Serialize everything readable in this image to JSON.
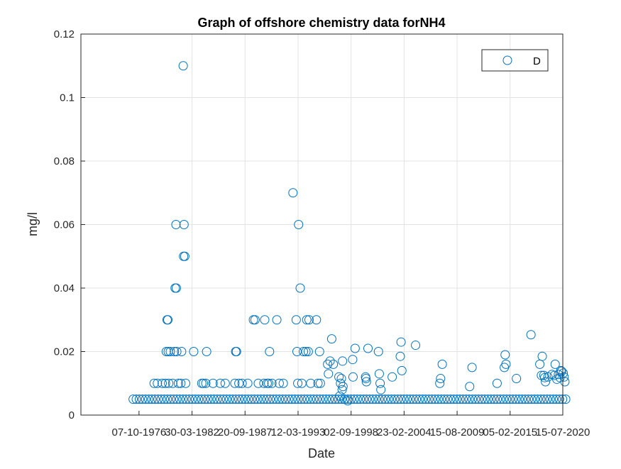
{
  "chart_data": {
    "type": "scatter",
    "title": "Graph of offshore chemistry data forNH4",
    "xlabel": "Date",
    "ylabel": "mg/l",
    "xlim": [
      "1970-10-07",
      "2020-07-15"
    ],
    "ylim": [
      0,
      0.12
    ],
    "grid": true,
    "legend_position": "top-right",
    "x_tick_labels": [
      "07-10-1976",
      "30-03-1982",
      "20-09-1987",
      "12-03-1993",
      "02-09-1998",
      "23-02-2004",
      "15-08-2009",
      "05-02-2015",
      "15-07-2020"
    ],
    "x_tick_dates": [
      "1976-10-07",
      "1982-03-30",
      "1987-09-20",
      "1993-03-12",
      "1998-09-02",
      "2004-02-23",
      "2009-08-15",
      "2015-02-05",
      "2020-07-15"
    ],
    "y_tick_labels": [
      "0",
      "0.02",
      "0.04",
      "0.06",
      "0.08",
      "0.1",
      "0.12"
    ],
    "y_ticks": [
      0,
      0.02,
      0.04,
      0.06,
      0.08,
      0.1,
      0.12
    ],
    "series": [
      {
        "name": "D",
        "color": "#0072BD",
        "marker": "circle-open",
        "points": [
          [
            "1981-05-01",
            0.11
          ],
          [
            "1981-06-01",
            0.06
          ],
          [
            "1980-08-01",
            0.06
          ],
          [
            "1981-07-01",
            0.05
          ],
          [
            "1981-05-15",
            0.05
          ],
          [
            "1980-07-01",
            0.04
          ],
          [
            "1980-08-15",
            0.04
          ],
          [
            "1979-09-01",
            0.03
          ],
          [
            "1979-10-01",
            0.03
          ],
          [
            "1979-08-01",
            0.02
          ],
          [
            "1979-10-15",
            0.02
          ],
          [
            "1980-01-01",
            0.02
          ],
          [
            "1980-06-01",
            0.02
          ],
          [
            "1980-09-01",
            0.02
          ],
          [
            "1981-03-01",
            0.02
          ],
          [
            "1982-06-01",
            0.02
          ],
          [
            "1983-10-01",
            0.02
          ],
          [
            "1986-10-01",
            0.02
          ],
          [
            "1986-11-01",
            0.02
          ],
          [
            "1978-05-01",
            0.01
          ],
          [
            "1978-09-01",
            0.01
          ],
          [
            "1979-03-01",
            0.01
          ],
          [
            "1979-07-01",
            0.01
          ],
          [
            "1979-11-01",
            0.01
          ],
          [
            "1980-04-01",
            0.01
          ],
          [
            "1980-11-01",
            0.01
          ],
          [
            "1981-02-01",
            0.01
          ],
          [
            "1981-08-01",
            0.01
          ],
          [
            "1983-04-01",
            0.01
          ],
          [
            "1983-06-01",
            0.01
          ],
          [
            "1983-09-01",
            0.01
          ],
          [
            "1984-06-01",
            0.01
          ],
          [
            "1985-03-01",
            0.01
          ],
          [
            "1985-09-01",
            0.01
          ],
          [
            "1986-09-01",
            0.01
          ],
          [
            "1987-02-01",
            0.01
          ],
          [
            "1987-06-01",
            0.01
          ],
          [
            "1988-01-01",
            0.01
          ],
          [
            "1988-08-01",
            0.03
          ],
          [
            "1988-10-01",
            0.03
          ],
          [
            "1989-10-01",
            0.03
          ],
          [
            "1991-01-01",
            0.03
          ],
          [
            "1992-09-01",
            0.07
          ],
          [
            "1993-04-01",
            0.06
          ],
          [
            "1993-06-01",
            0.04
          ],
          [
            "1993-01-01",
            0.03
          ],
          [
            "1994-02-01",
            0.03
          ],
          [
            "1994-05-01",
            0.03
          ],
          [
            "1995-02-01",
            0.03
          ],
          [
            "1990-04-01",
            0.02
          ],
          [
            "1993-02-01",
            0.02
          ],
          [
            "1993-10-01",
            0.02
          ],
          [
            "1994-01-01",
            0.02
          ],
          [
            "1994-04-01",
            0.02
          ],
          [
            "1995-06-01",
            0.02
          ],
          [
            "1989-02-01",
            0.01
          ],
          [
            "1989-09-01",
            0.01
          ],
          [
            "1990-01-01",
            0.01
          ],
          [
            "1990-03-01",
            0.01
          ],
          [
            "1990-07-01",
            0.01
          ],
          [
            "1991-04-01",
            0.01
          ],
          [
            "1991-09-01",
            0.01
          ],
          [
            "1993-03-01",
            0.01
          ],
          [
            "1993-08-01",
            0.01
          ],
          [
            "1994-07-01",
            0.01
          ],
          [
            "1995-04-01",
            0.01
          ],
          [
            "1995-07-01",
            0.01
          ],
          [
            "1996-09-01",
            0.024
          ],
          [
            "1996-07-01",
            0.017
          ],
          [
            "1996-04-01",
            0.016
          ],
          [
            "1996-11-01",
            0.016
          ],
          [
            "1996-05-01",
            0.013
          ],
          [
            "1997-06-01",
            0.012
          ],
          [
            "1997-09-01",
            0.0115
          ],
          [
            "1997-08-01",
            0.01
          ],
          [
            "1997-11-01",
            0.009
          ],
          [
            "1997-10-01",
            0.008
          ],
          [
            "1997-07-01",
            0.006
          ],
          [
            "1998-01-01",
            0.005
          ],
          [
            "1998-05-01",
            0.0045
          ],
          [
            "1997-10-15",
            0.017
          ],
          [
            "1999-02-01",
            0.021
          ],
          [
            "1998-11-01",
            0.0175
          ],
          [
            "1998-11-15",
            0.012
          ],
          [
            "2000-06-01",
            0.021
          ],
          [
            "2000-03-01",
            0.012
          ],
          [
            "2000-03-15",
            0.0115
          ],
          [
            "2000-04-01",
            0.0105
          ],
          [
            "2001-07-01",
            0.02
          ],
          [
            "2001-08-01",
            0.013
          ],
          [
            "2001-09-01",
            0.01
          ],
          [
            "2001-10-01",
            0.008
          ],
          [
            "2002-12-01",
            0.012
          ],
          [
            "2003-11-01",
            0.023
          ],
          [
            "2003-10-01",
            0.0185
          ],
          [
            "2003-12-01",
            0.014
          ],
          [
            "2005-05-01",
            0.022
          ],
          [
            "2008-02-01",
            0.016
          ],
          [
            "2007-12-01",
            0.0115
          ],
          [
            "2007-11-01",
            0.01
          ],
          [
            "2011-03-01",
            0.015
          ],
          [
            "2010-12-01",
            0.009
          ],
          [
            "2014-08-01",
            0.019
          ],
          [
            "2014-09-01",
            0.016
          ],
          [
            "2014-07-01",
            0.015
          ],
          [
            "2013-10-01",
            0.01
          ],
          [
            "2015-10-01",
            0.0115
          ],
          [
            "2017-04-01",
            0.0253
          ],
          [
            "2018-06-01",
            0.0185
          ],
          [
            "2018-03-01",
            0.016
          ],
          [
            "2018-05-01",
            0.0125
          ],
          [
            "2018-08-01",
            0.0125
          ],
          [
            "2018-10-01",
            0.0105
          ],
          [
            "2019-01-01",
            0.012
          ],
          [
            "2019-06-01",
            0.0128
          ],
          [
            "2019-10-01",
            0.016
          ],
          [
            "2019-12-01",
            0.0113
          ],
          [
            "2020-02-01",
            0.0128
          ],
          [
            "2020-04-01",
            0.0118
          ],
          [
            "2020-06-01",
            0.0138
          ],
          [
            "2020-08-01",
            0.0132
          ],
          [
            "2020-09-01",
            0.012
          ],
          [
            "2020-10-01",
            0.0105
          ],
          [
            "2018-09-01",
            0.0118
          ],
          [
            "2019-09-01",
            0.0125
          ],
          [
            "2020-05-01",
            0.014
          ]
        ],
        "baseline_value": 0.005,
        "baseline_range": [
          "1976-03-01",
          "2020-11-01"
        ],
        "baseline_count": 140
      }
    ]
  }
}
